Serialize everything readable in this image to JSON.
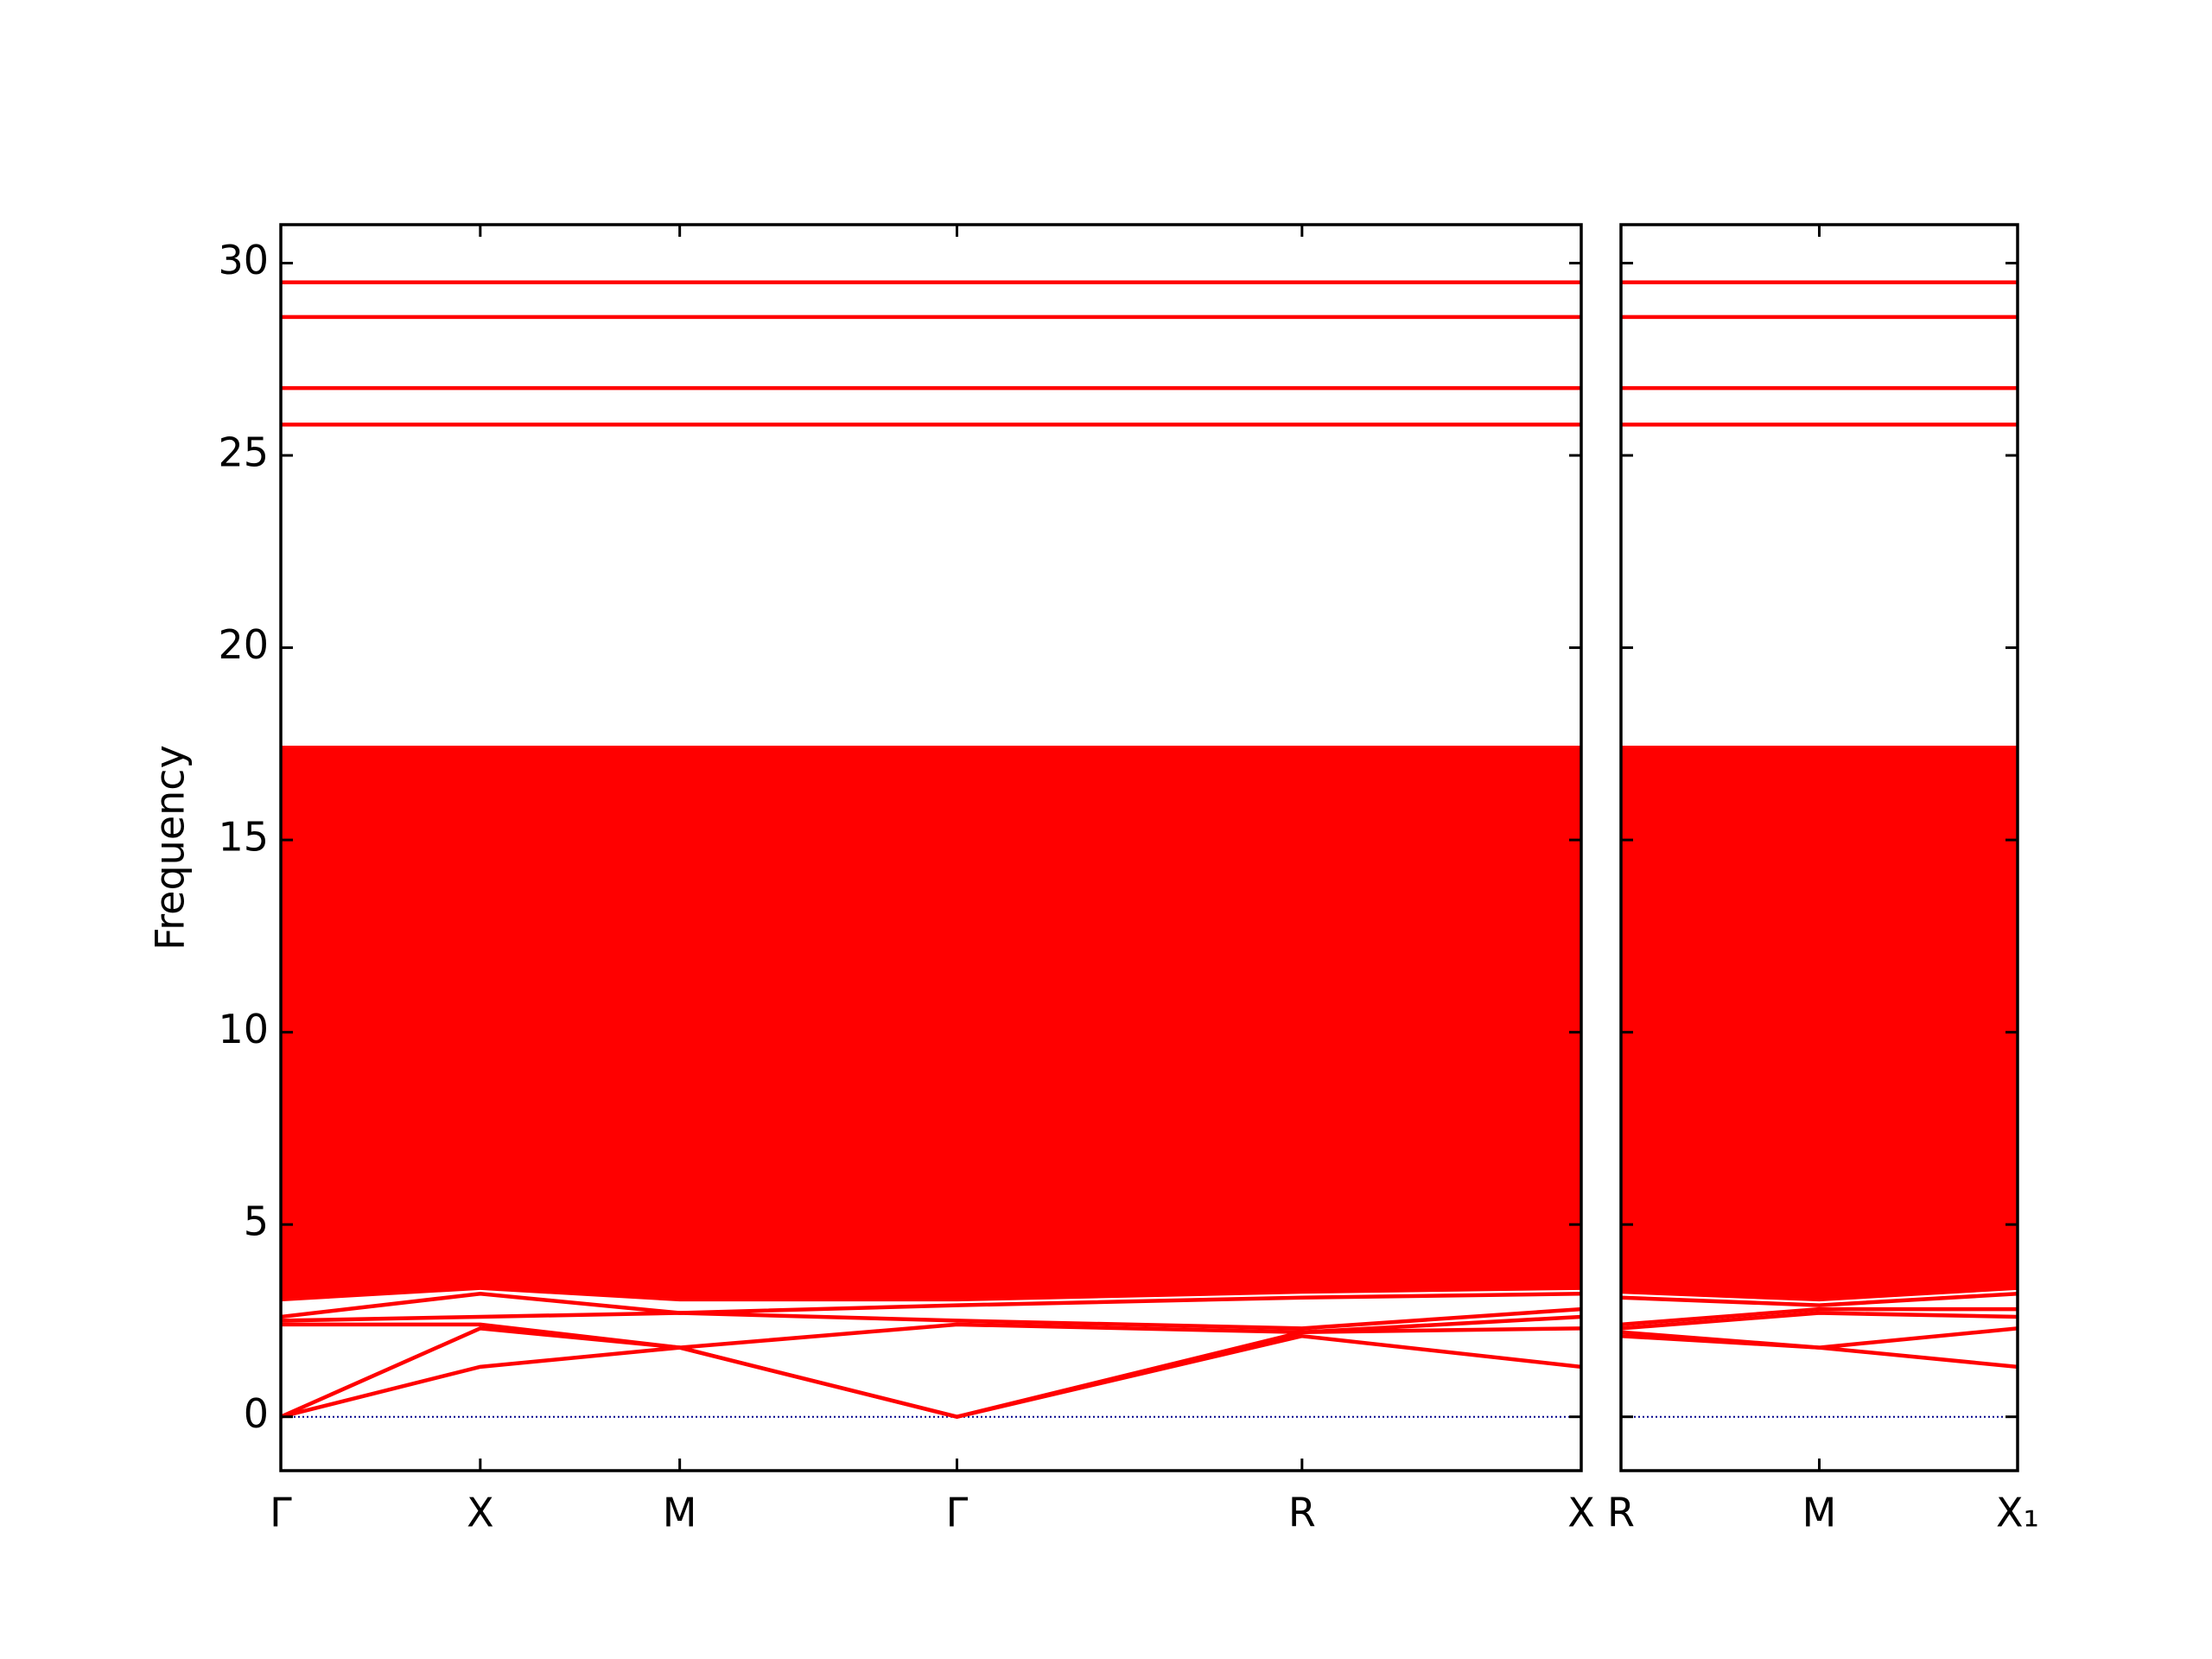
{
  "chart_data": [
    {
      "type": "line",
      "ylabel": "Frequency",
      "x": [
        0,
        1,
        2,
        3.39,
        5.12,
        6.52
      ],
      "xlim": [
        0,
        6.52
      ],
      "xticks": [
        {
          "value": 0,
          "label": "Γ"
        },
        {
          "value": 1,
          "label": "X"
        },
        {
          "value": 2,
          "label": "M"
        },
        {
          "value": 3.39,
          "label": "Γ"
        },
        {
          "value": 5.12,
          "label": "R"
        },
        {
          "value": 6.52,
          "label": "X"
        }
      ],
      "ylim": [
        -1.4,
        31
      ],
      "yticks": [
        0,
        5,
        10,
        15,
        20,
        25,
        30
      ],
      "show_ytick_labels": true,
      "color": "#ff0000",
      "band_region": {
        "lower": [
          3.0,
          3.3,
          3.0,
          3.0,
          3.2,
          3.3
        ],
        "upper": [
          17.45,
          17.45,
          17.45,
          17.45,
          17.45,
          17.45
        ]
      },
      "series": [
        {
          "values": [
            0,
            1.3,
            1.8,
            0,
            2.1,
            1.3
          ]
        },
        {
          "values": [
            0,
            2.3,
            1.8,
            0,
            2.2,
            2.3
          ]
        },
        {
          "values": [
            2.4,
            2.4,
            1.8,
            2.4,
            2.2,
            2.6
          ]
        },
        {
          "values": [
            2.5,
            2.6,
            2.7,
            2.5,
            2.3,
            2.8
          ]
        },
        {
          "values": [
            2.6,
            3.2,
            2.7,
            2.9,
            3.1,
            3.2
          ]
        },
        {
          "values": [
            25.8,
            25.8,
            25.8,
            25.8,
            25.8,
            25.8
          ]
        },
        {
          "values": [
            26.75,
            26.75,
            26.75,
            26.75,
            26.75,
            26.75
          ]
        },
        {
          "values": [
            28.6,
            28.6,
            28.6,
            28.6,
            28.6,
            28.6
          ]
        },
        {
          "values": [
            29.5,
            29.5,
            29.5,
            29.5,
            29.5,
            29.5
          ]
        }
      ],
      "reference_line": {
        "value": 0,
        "color": "#00008b"
      }
    },
    {
      "type": "line",
      "x": [
        0,
        1,
        2
      ],
      "xlim": [
        0,
        2
      ],
      "xticks": [
        {
          "value": 0,
          "label": "R"
        },
        {
          "value": 1,
          "label": "M"
        },
        {
          "value": 2,
          "label": "X₁"
        }
      ],
      "ylim": [
        -1.4,
        31
      ],
      "yticks": [
        0,
        5,
        10,
        15,
        20,
        25,
        30
      ],
      "show_ytick_labels": false,
      "color": "#ff0000",
      "band_region": {
        "lower": [
          3.2,
          3.0,
          3.3
        ],
        "upper": [
          17.45,
          17.45,
          17.45
        ]
      },
      "series": [
        {
          "values": [
            2.1,
            1.8,
            1.3
          ]
        },
        {
          "values": [
            2.2,
            1.8,
            2.3
          ]
        },
        {
          "values": [
            2.3,
            2.7,
            2.6
          ]
        },
        {
          "values": [
            2.4,
            2.8,
            2.8
          ]
        },
        {
          "values": [
            3.1,
            2.9,
            3.2
          ]
        },
        {
          "values": [
            25.8,
            25.8,
            25.8
          ]
        },
        {
          "values": [
            26.75,
            26.75,
            26.75
          ]
        },
        {
          "values": [
            28.6,
            28.6,
            28.6
          ]
        },
        {
          "values": [
            29.5,
            29.5,
            29.5
          ]
        }
      ],
      "reference_line": {
        "value": 0,
        "color": "#00008b"
      }
    }
  ]
}
